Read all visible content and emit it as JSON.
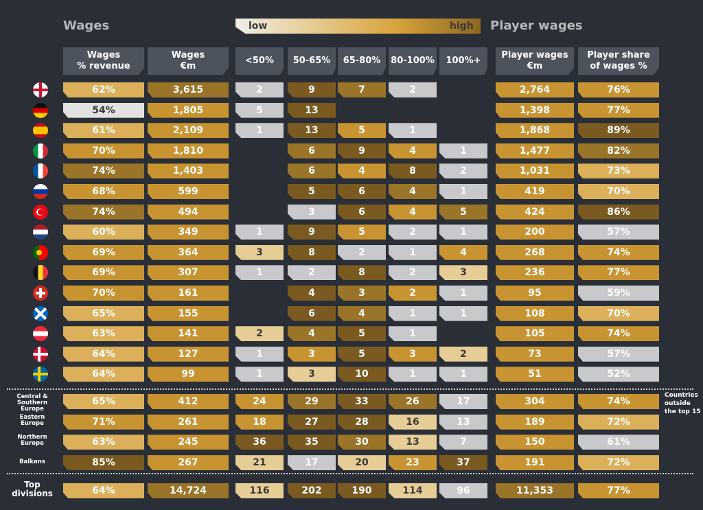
{
  "sections": {
    "wages": "Wages",
    "player_wages": "Player wages"
  },
  "legend": {
    "low": "low",
    "high": "high"
  },
  "headers": [
    "Wages\n% revenue",
    "Wages\n€m",
    "<50%",
    "50-65%",
    "65-80%",
    "80-100%",
    "100%+",
    "Player wages\n€m",
    "Player share\nof wages %"
  ],
  "colors": {
    "background": "#2a2e36",
    "header_bg": "#4d535d",
    "grey": "#c8c9cc",
    "light_grey": "#e2e2e2",
    "light_gold": "#e6cd96",
    "gold_light": "#dcb05a",
    "gold": "#c89432",
    "gold_dark": "#9a7428",
    "brown": "#7a5a20"
  },
  "countries": [
    {
      "flag": "england-flag-icon",
      "pct": "62%",
      "wages": "3,615",
      "b": [
        "2",
        "9",
        "7",
        "2",
        ""
      ],
      "pw": "2,764",
      "share": "76%"
    },
    {
      "flag": "germany-flag-icon",
      "pct": "54%",
      "wages": "1,805",
      "b": [
        "5",
        "13",
        "",
        "",
        ""
      ],
      "pw": "1,398",
      "share": "77%"
    },
    {
      "flag": "spain-flag-icon",
      "pct": "61%",
      "wages": "2,109",
      "b": [
        "1",
        "13",
        "5",
        "1",
        ""
      ],
      "pw": "1,868",
      "share": "89%"
    },
    {
      "flag": "italy-flag-icon",
      "pct": "70%",
      "wages": "1,810",
      "b": [
        "",
        "6",
        "9",
        "4",
        "1"
      ],
      "pw": "1,477",
      "share": "82%"
    },
    {
      "flag": "france-flag-icon",
      "pct": "74%",
      "wages": "1,403",
      "b": [
        "",
        "6",
        "4",
        "8",
        "2"
      ],
      "pw": "1,031",
      "share": "73%"
    },
    {
      "flag": "russia-flag-icon",
      "pct": "68%",
      "wages": "599",
      "b": [
        "",
        "5",
        "6",
        "4",
        "1"
      ],
      "pw": "419",
      "share": "70%"
    },
    {
      "flag": "turkey-flag-icon",
      "pct": "74%",
      "wages": "494",
      "b": [
        "",
        "3",
        "6",
        "4",
        "5"
      ],
      "pw": "424",
      "share": "86%"
    },
    {
      "flag": "netherlands-flag-icon",
      "pct": "60%",
      "wages": "349",
      "b": [
        "1",
        "9",
        "5",
        "2",
        "1"
      ],
      "pw": "200",
      "share": "57%"
    },
    {
      "flag": "portugal-flag-icon",
      "pct": "69%",
      "wages": "364",
      "b": [
        "3",
        "8",
        "2",
        "1",
        "4"
      ],
      "pw": "268",
      "share": "74%"
    },
    {
      "flag": "belgium-flag-icon",
      "pct": "69%",
      "wages": "307",
      "b": [
        "1",
        "2",
        "8",
        "2",
        "3"
      ],
      "pw": "236",
      "share": "77%"
    },
    {
      "flag": "switzerland-flag-icon",
      "pct": "70%",
      "wages": "161",
      "b": [
        "",
        "4",
        "3",
        "2",
        "1"
      ],
      "pw": "95",
      "share": "59%"
    },
    {
      "flag": "scotland-flag-icon",
      "pct": "65%",
      "wages": "155",
      "b": [
        "",
        "6",
        "4",
        "1",
        "1"
      ],
      "pw": "108",
      "share": "70%"
    },
    {
      "flag": "austria-flag-icon",
      "pct": "63%",
      "wages": "141",
      "b": [
        "2",
        "4",
        "5",
        "1",
        ""
      ],
      "pw": "105",
      "share": "74%"
    },
    {
      "flag": "denmark-flag-icon",
      "pct": "64%",
      "wages": "127",
      "b": [
        "1",
        "3",
        "5",
        "3",
        "2"
      ],
      "pw": "73",
      "share": "57%"
    },
    {
      "flag": "sweden-flag-icon",
      "pct": "64%",
      "wages": "99",
      "b": [
        "1",
        "3",
        "10",
        "1",
        "1"
      ],
      "pw": "51",
      "share": "52%"
    }
  ],
  "regions": [
    {
      "label": "Central &\nSouthern\nEurope",
      "pct": "65%",
      "wages": "412",
      "b": [
        "24",
        "29",
        "33",
        "26",
        "17"
      ],
      "pw": "304",
      "share": "74%"
    },
    {
      "label": "Eastern\nEurope",
      "pct": "71%",
      "wages": "261",
      "b": [
        "18",
        "27",
        "28",
        "16",
        "13"
      ],
      "pw": "189",
      "share": "72%"
    },
    {
      "label": "Northern\nEurope",
      "pct": "63%",
      "wages": "245",
      "b": [
        "36",
        "35",
        "30",
        "13",
        "7"
      ],
      "pw": "150",
      "share": "61%"
    },
    {
      "label": "Balkans",
      "pct": "85%",
      "wages": "267",
      "b": [
        "21",
        "17",
        "20",
        "23",
        "37"
      ],
      "pw": "191",
      "share": "72%"
    }
  ],
  "regions_note": "Countries outside the top 15",
  "total": {
    "label": "Top\ndivisions",
    "pct": "64%",
    "wages": "14,724",
    "b": [
      "116",
      "202",
      "190",
      "114",
      "96"
    ],
    "pw": "11,353",
    "share": "77%"
  },
  "chart_data": {
    "type": "table",
    "columns": [
      "Wages % revenue",
      "Wages €m",
      "<50%",
      "50-65%",
      "65-80%",
      "80-100%",
      "100%+",
      "Player wages €m",
      "Player share of wages %"
    ],
    "column_groups": {
      "Wages": [
        "Wages % revenue",
        "Wages €m",
        "<50%",
        "50-65%",
        "65-80%",
        "80-100%",
        "100%+"
      ],
      "Player wages": [
        "Player wages €m",
        "Player share of wages %"
      ]
    },
    "color_scale": [
      "low",
      "high"
    ],
    "rows": [
      {
        "flag": "england",
        "values": [
          "62%",
          "3,615",
          2,
          9,
          7,
          2,
          null,
          "2,764",
          "76%"
        ]
      },
      {
        "flag": "germany",
        "values": [
          "54%",
          "1,805",
          5,
          13,
          null,
          null,
          null,
          "1,398",
          "77%"
        ]
      },
      {
        "flag": "spain",
        "values": [
          "61%",
          "2,109",
          1,
          13,
          5,
          1,
          null,
          "1,868",
          "89%"
        ]
      },
      {
        "flag": "italy",
        "values": [
          "70%",
          "1,810",
          null,
          6,
          9,
          4,
          1,
          "1,477",
          "82%"
        ]
      },
      {
        "flag": "france",
        "values": [
          "74%",
          "1,403",
          null,
          6,
          4,
          8,
          2,
          "1,031",
          "73%"
        ]
      },
      {
        "flag": "russia",
        "values": [
          "68%",
          "599",
          null,
          5,
          6,
          4,
          1,
          "419",
          "70%"
        ]
      },
      {
        "flag": "turkey",
        "values": [
          "74%",
          "494",
          null,
          3,
          6,
          4,
          5,
          "424",
          "86%"
        ]
      },
      {
        "flag": "netherlands",
        "values": [
          "60%",
          "349",
          1,
          9,
          5,
          2,
          1,
          "200",
          "57%"
        ]
      },
      {
        "flag": "portugal",
        "values": [
          "69%",
          "364",
          3,
          8,
          2,
          1,
          4,
          "268",
          "74%"
        ]
      },
      {
        "flag": "belgium",
        "values": [
          "69%",
          "307",
          1,
          2,
          8,
          2,
          3,
          "236",
          "77%"
        ]
      },
      {
        "flag": "switzerland",
        "values": [
          "70%",
          "161",
          null,
          4,
          3,
          2,
          1,
          "95",
          "59%"
        ]
      },
      {
        "flag": "scotland",
        "values": [
          "65%",
          "155",
          null,
          6,
          4,
          1,
          1,
          "108",
          "70%"
        ]
      },
      {
        "flag": "austria",
        "values": [
          "63%",
          "141",
          2,
          4,
          5,
          1,
          null,
          "105",
          "74%"
        ]
      },
      {
        "flag": "denmark",
        "values": [
          "64%",
          "127",
          1,
          3,
          5,
          3,
          2,
          "73",
          "57%"
        ]
      },
      {
        "flag": "sweden",
        "values": [
          "64%",
          "99",
          1,
          3,
          10,
          1,
          1,
          "51",
          "52%"
        ]
      },
      {
        "label": "Central & Southern Europe",
        "values": [
          "65%",
          "412",
          24,
          29,
          33,
          26,
          17,
          "304",
          "74%"
        ]
      },
      {
        "label": "Eastern Europe",
        "values": [
          "71%",
          "261",
          18,
          27,
          28,
          16,
          13,
          "189",
          "72%"
        ]
      },
      {
        "label": "Northern Europe",
        "values": [
          "63%",
          "245",
          36,
          35,
          30,
          13,
          7,
          "150",
          "61%"
        ]
      },
      {
        "label": "Balkans",
        "values": [
          "85%",
          "267",
          21,
          17,
          20,
          23,
          37,
          "191",
          "72%"
        ]
      },
      {
        "label": "Top divisions",
        "values": [
          "64%",
          "14,724",
          116,
          202,
          190,
          114,
          96,
          "11,353",
          "77%"
        ]
      }
    ]
  }
}
